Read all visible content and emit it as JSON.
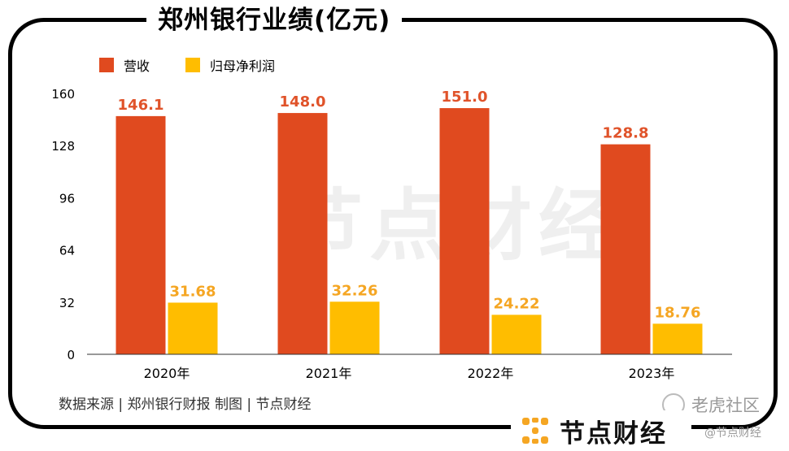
{
  "title": "郑州银行业绩(亿元)",
  "legend": {
    "revenue": "营收",
    "profit": "归母净利润"
  },
  "colors": {
    "revenue": "#e04a1f",
    "profit": "#ffbd00",
    "revenue_label": "#e0532a",
    "profit_label": "#f5a623"
  },
  "source": "数据来源 | 郑州银行财报  制图 | 节点财经",
  "brand": "节点财经",
  "watermark": {
    "big": "节点财经",
    "tiger": "老虎社区",
    "small": "@节点财经"
  },
  "chart_data": {
    "type": "bar",
    "title": "郑州银行业绩(亿元)",
    "categories": [
      "2020年",
      "2021年",
      "2022年",
      "2023年"
    ],
    "series": [
      {
        "name": "营收",
        "values": [
          146.1,
          148.0,
          151.0,
          128.8
        ],
        "labels": [
          "146.1",
          "148.0",
          "151.0",
          "128.8"
        ]
      },
      {
        "name": "归母净利润",
        "values": [
          31.68,
          32.26,
          24.22,
          18.76
        ],
        "labels": [
          "31.68",
          "32.26",
          "24.22",
          "18.76"
        ]
      }
    ],
    "yticks": [
      "0",
      "32",
      "64",
      "96",
      "128",
      "160"
    ],
    "ylim": [
      0,
      160
    ],
    "xlabel": "",
    "ylabel": "",
    "legend_position": "top-left",
    "grid": false
  }
}
